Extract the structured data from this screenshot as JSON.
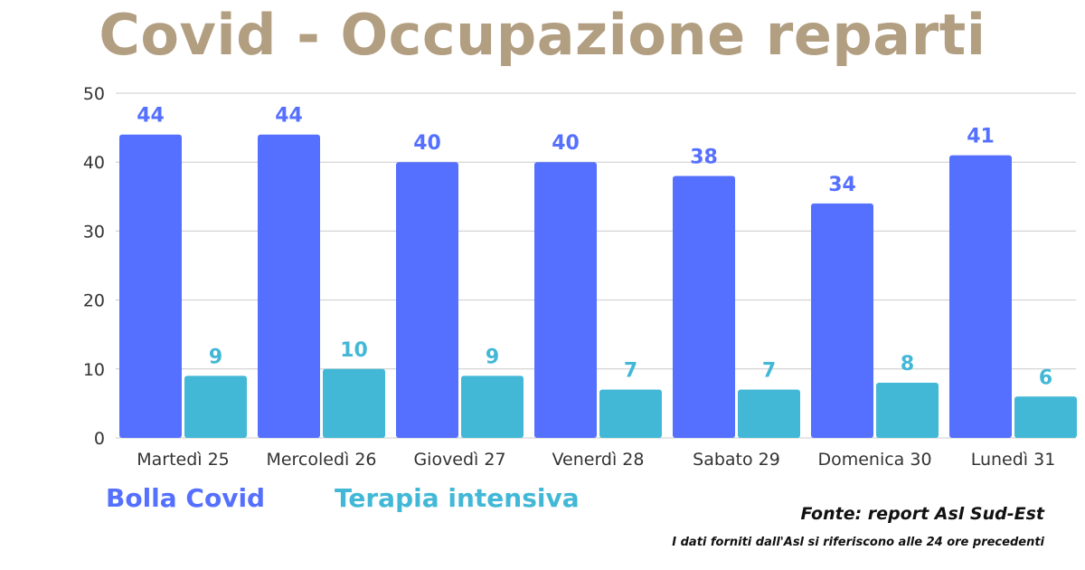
{
  "title": "Covid - Occupazione reparti",
  "colors": {
    "title": "#b29e80",
    "bolla_covid": "#5570ff",
    "terapia_intensiva": "#42b8d6",
    "grid": "#cccccc",
    "axis_text": "#333333"
  },
  "chart_data": {
    "type": "bar",
    "categories": [
      "Martedì 25",
      "Mercoledì 26",
      "Giovedì 27",
      "Venerdì 28",
      "Sabato 29",
      "Domenica 30",
      "Lunedì 31"
    ],
    "series": [
      {
        "name": "Bolla Covid",
        "values": [
          44,
          44,
          40,
          40,
          38,
          34,
          41
        ]
      },
      {
        "name": "Terapia intensiva",
        "values": [
          9,
          10,
          9,
          7,
          7,
          8,
          6
        ]
      }
    ],
    "ylim": [
      0,
      50
    ],
    "yticks": [
      0,
      10,
      20,
      30,
      40,
      50
    ],
    "grid": true,
    "data_labels": true,
    "legend_position": "bottom-left"
  },
  "source": "Fonte: report Asl Sud-Est",
  "footnote": "I dati forniti dall'Asl si riferiscono alle 24 ore precedenti"
}
